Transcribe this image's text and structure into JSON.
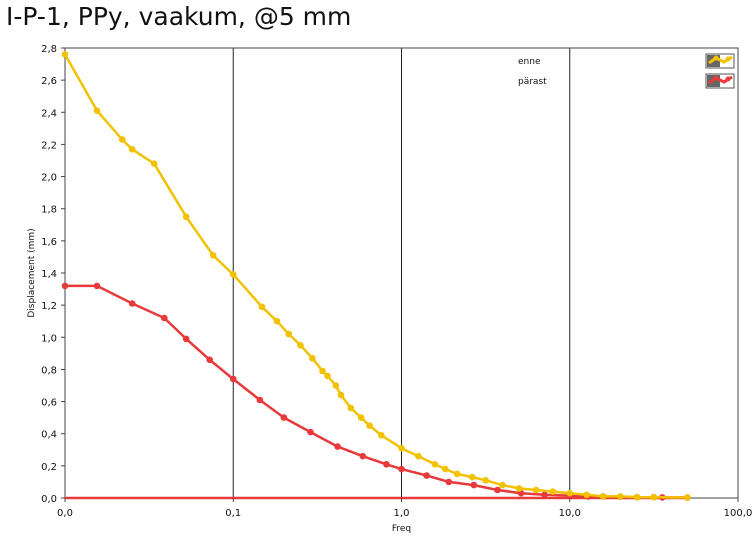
{
  "chart_data": {
    "type": "line",
    "title": "I-P-1, PPy, vaakum, @5 mm",
    "xlabel": "Freq",
    "ylabel": "Displacement (mm)",
    "x_ticks": [
      "0,0",
      "0,1",
      "1,0",
      "10,0",
      "100,0"
    ],
    "y_ticks": [
      "0,0",
      "0,2",
      "0,4",
      "0,6",
      "0,8",
      "1,0",
      "1,2",
      "1,4",
      "1,6",
      "1,8",
      "2,0",
      "2,2",
      "2,4",
      "2,6",
      "2,8"
    ],
    "xlim_decades": [
      -2,
      2
    ],
    "ylim": [
      0,
      2.8
    ],
    "grid": "x-major",
    "legend_position": "top-right",
    "series": [
      {
        "name": "enne",
        "color": "#f2c200",
        "points": [
          [
            0.01,
            2.76
          ],
          [
            0.0155,
            2.41
          ],
          [
            0.0219,
            2.23
          ],
          [
            0.0251,
            2.17
          ],
          [
            0.0339,
            2.08
          ],
          [
            0.0525,
            1.75
          ],
          [
            0.0759,
            1.51
          ],
          [
            0.1,
            1.39
          ],
          [
            0.148,
            1.19
          ],
          [
            0.182,
            1.1
          ],
          [
            0.214,
            1.02
          ],
          [
            0.251,
            0.95
          ],
          [
            0.295,
            0.87
          ],
          [
            0.339,
            0.79
          ],
          [
            0.363,
            0.76
          ],
          [
            0.407,
            0.7
          ],
          [
            0.437,
            0.64
          ],
          [
            0.5,
            0.56
          ],
          [
            0.575,
            0.5
          ],
          [
            0.646,
            0.45
          ],
          [
            0.759,
            0.39
          ],
          [
            1.0,
            0.31
          ],
          [
            1.26,
            0.26
          ],
          [
            1.58,
            0.21
          ],
          [
            1.82,
            0.18
          ],
          [
            2.14,
            0.15
          ],
          [
            2.63,
            0.13
          ],
          [
            3.16,
            0.11
          ],
          [
            3.98,
            0.08
          ],
          [
            5.01,
            0.06
          ],
          [
            6.31,
            0.05
          ],
          [
            7.94,
            0.04
          ],
          [
            10.0,
            0.03
          ],
          [
            12.6,
            0.02
          ],
          [
            15.8,
            0.01
          ],
          [
            20.0,
            0.01
          ],
          [
            25.1,
            0.005
          ],
          [
            31.6,
            0.005
          ],
          [
            50.0,
            0.003
          ]
        ]
      },
      {
        "name": "pärast",
        "color": "#e83a3a",
        "points": [
          [
            0.01,
            1.32
          ],
          [
            0.0155,
            1.32
          ],
          [
            0.0251,
            1.21
          ],
          [
            0.0389,
            1.12
          ],
          [
            0.0525,
            0.99
          ],
          [
            0.0724,
            0.86
          ],
          [
            0.1,
            0.74
          ],
          [
            0.144,
            0.61
          ],
          [
            0.2,
            0.5
          ],
          [
            0.288,
            0.41
          ],
          [
            0.417,
            0.32
          ],
          [
            0.589,
            0.26
          ],
          [
            0.813,
            0.21
          ],
          [
            1.0,
            0.18
          ],
          [
            1.41,
            0.14
          ],
          [
            1.91,
            0.1
          ],
          [
            2.69,
            0.08
          ],
          [
            3.72,
            0.05
          ],
          [
            5.13,
            0.03
          ],
          [
            7.08,
            0.02
          ],
          [
            10.0,
            0.015
          ],
          [
            12.9,
            0.01
          ],
          [
            15.8,
            0.01
          ],
          [
            20.0,
            0.008
          ],
          [
            25.1,
            0.005
          ],
          [
            31.6,
            0.005
          ],
          [
            35.5,
            0.004
          ],
          [
            50.0,
            0.003
          ]
        ]
      },
      {
        "name": "",
        "color": "#e83a3a",
        "points": [
          [
            0.01,
            0.0
          ],
          [
            50.0,
            0.0
          ]
        ],
        "no_markers": true
      }
    ]
  }
}
